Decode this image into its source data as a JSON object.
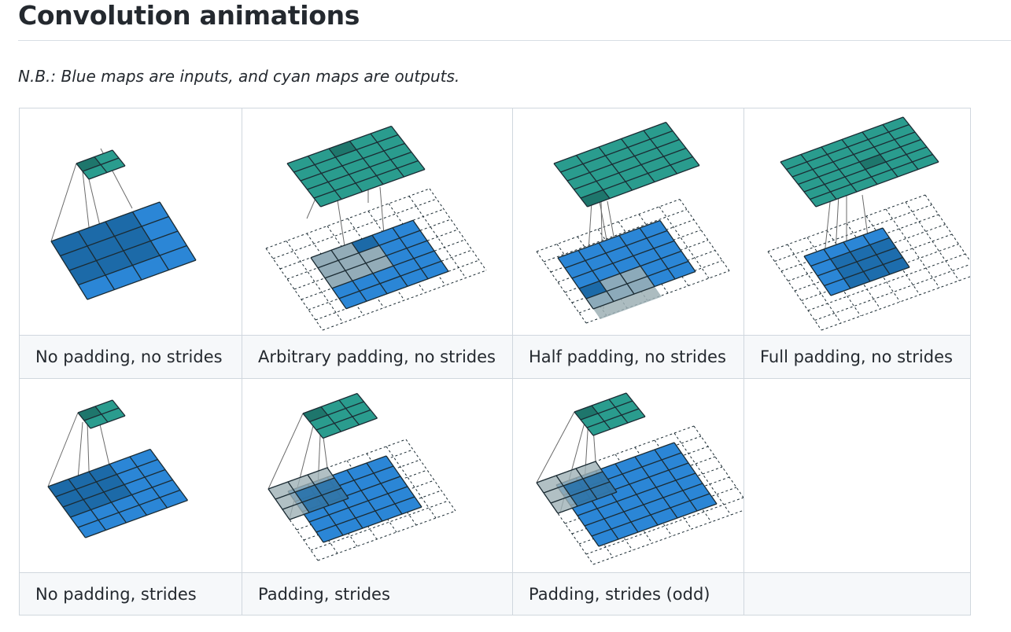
{
  "page": {
    "heading": "Convolution animations",
    "note": "N.B.: Blue maps are inputs, and cyan maps are outputs."
  },
  "colors": {
    "input_blue": "#2b86d6",
    "input_shadow": "#1c6aa8",
    "output_cyan": "#2a9c8e",
    "output_shadow": "#1e766c",
    "padding_gray": "#9eb0b5",
    "grid_line": "#1b2b33"
  },
  "animations": [
    {
      "caption": "No padding, no strides"
    },
    {
      "caption": "Arbitrary padding, no strides"
    },
    {
      "caption": "Half padding, no strides"
    },
    {
      "caption": "Full padding, no strides"
    },
    {
      "caption": "No padding, strides"
    },
    {
      "caption": "Padding, strides"
    },
    {
      "caption": "Padding, strides (odd)"
    },
    {
      "caption": ""
    }
  ]
}
